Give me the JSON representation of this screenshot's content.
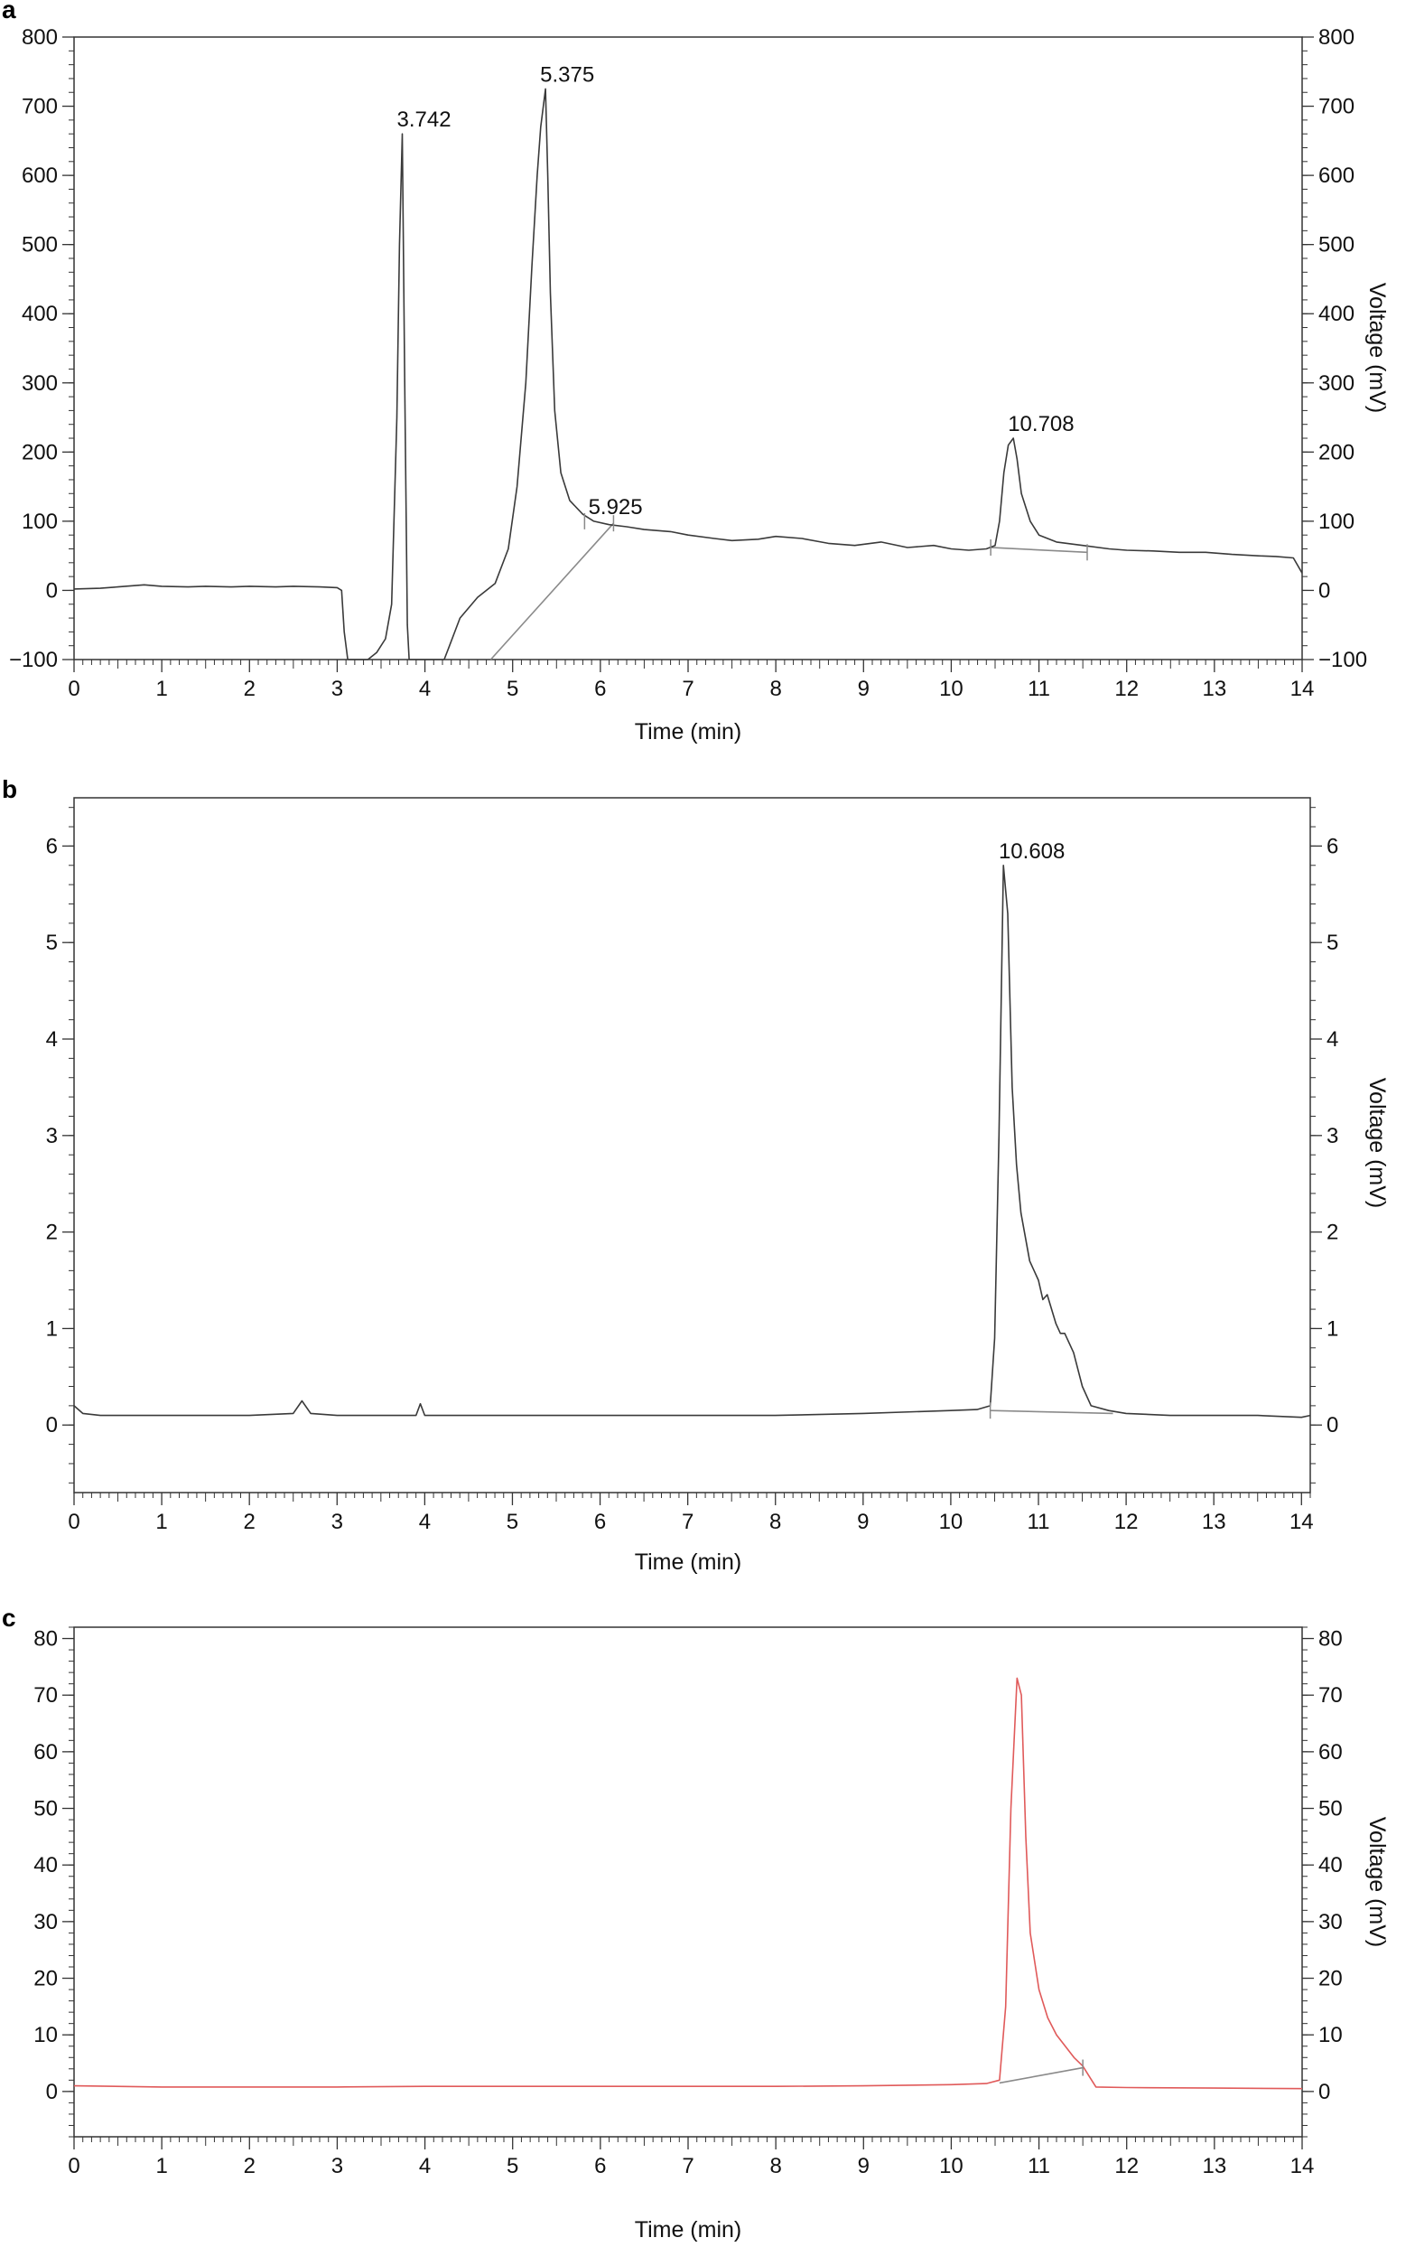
{
  "chart_data": [
    {
      "panel": "a",
      "type": "line",
      "xlabel": "Time (min)",
      "ylabel": "",
      "ylabel_right": "Voltage (mV)",
      "xlim": [
        0,
        14
      ],
      "ylim": [
        -100,
        800
      ],
      "xticks": [
        0,
        1,
        2,
        3,
        4,
        5,
        6,
        7,
        8,
        9,
        10,
        11,
        12,
        13,
        14
      ],
      "yticks": [
        -100,
        0,
        100,
        200,
        300,
        400,
        500,
        600,
        700,
        800
      ],
      "ytick_labels": [
        "−100",
        "0",
        "100",
        "200",
        "300",
        "400",
        "500",
        "600",
        "700",
        "800"
      ],
      "grid": false,
      "line_color": "#3a3a3a",
      "series": [
        {
          "x": [
            0,
            0.3,
            0.5,
            0.8,
            1.0,
            1.3,
            1.5,
            1.8,
            2.0,
            2.3,
            2.5,
            2.8,
            3.0,
            3.05,
            3.08,
            3.12,
            3.35,
            3.45,
            3.55,
            3.62,
            3.68,
            3.71,
            3.742,
            3.77,
            3.8,
            3.82,
            3.83,
            4.22,
            4.28,
            4.4,
            4.6,
            4.8,
            4.95,
            5.05,
            5.15,
            5.22,
            5.28,
            5.32,
            5.375,
            5.4,
            5.43,
            5.48,
            5.55,
            5.65,
            5.8,
            5.925,
            6.1,
            6.3,
            6.5,
            6.8,
            7.0,
            7.3,
            7.5,
            7.8,
            8.0,
            8.3,
            8.6,
            8.9,
            9.2,
            9.5,
            9.8,
            10.0,
            10.2,
            10.4,
            10.5,
            10.55,
            10.6,
            10.65,
            10.708,
            10.75,
            10.8,
            10.9,
            11.0,
            11.2,
            11.5,
            11.8,
            12.0,
            12.3,
            12.6,
            12.9,
            13.2,
            13.5,
            13.7,
            13.9,
            14.0
          ],
          "y": [
            2,
            3,
            5,
            8,
            6,
            5,
            6,
            5,
            6,
            5,
            6,
            5,
            4,
            0,
            -60,
            -100,
            -100,
            -90,
            -70,
            -20,
            250,
            500,
            660,
            300,
            -50,
            -100,
            -100,
            -100,
            -80,
            -40,
            -10,
            10,
            60,
            150,
            300,
            470,
            600,
            670,
            725,
            600,
            430,
            260,
            170,
            130,
            110,
            100,
            95,
            92,
            88,
            85,
            80,
            75,
            72,
            74,
            78,
            75,
            68,
            65,
            70,
            62,
            65,
            60,
            58,
            60,
            65,
            100,
            170,
            210,
            220,
            190,
            140,
            100,
            80,
            70,
            65,
            60,
            58,
            57,
            55,
            55,
            52,
            50,
            49,
            47,
            25
          ]
        }
      ],
      "annotations": [
        {
          "x": 3.742,
          "y": 660,
          "text": "3.742"
        },
        {
          "x": 5.375,
          "y": 725,
          "text": "5.375"
        },
        {
          "x": 5.925,
          "y": 100,
          "text": "5.925"
        },
        {
          "x": 10.708,
          "y": 220,
          "text": "10.708"
        }
      ],
      "baselines": [
        {
          "x": [
            4.75,
            6.15
          ],
          "y": [
            -100,
            97
          ]
        },
        {
          "x": [
            10.45,
            11.55
          ],
          "y": [
            62,
            55
          ]
        }
      ],
      "markers": [
        {
          "x": 5.82,
          "y": 100
        },
        {
          "x": 6.15,
          "y": 97
        },
        {
          "x": 10.45,
          "y": 62
        },
        {
          "x": 11.55,
          "y": 55
        }
      ]
    },
    {
      "panel": "b",
      "type": "line",
      "xlabel": "Time (min)",
      "ylabel": "",
      "ylabel_right": "Voltage (mV)",
      "xlim": [
        0,
        14.1
      ],
      "ylim": [
        -0.7,
        6.5
      ],
      "xticks": [
        0,
        1,
        2,
        3,
        4,
        5,
        6,
        7,
        8,
        9,
        10,
        11,
        12,
        13,
        14
      ],
      "yticks": [
        0,
        1,
        2,
        3,
        4,
        5,
        6
      ],
      "ytick_labels": [
        "0",
        "1",
        "2",
        "3",
        "4",
        "5",
        "6"
      ],
      "grid": false,
      "line_color": "#3a3a3a",
      "series": [
        {
          "x": [
            0,
            0.1,
            0.3,
            1.0,
            2.0,
            2.5,
            2.6,
            2.7,
            3.0,
            3.9,
            3.95,
            4.0,
            5.0,
            6.0,
            7.0,
            8.0,
            9.0,
            10.0,
            10.3,
            10.45,
            10.5,
            10.55,
            10.6,
            10.65,
            10.7,
            10.75,
            10.8,
            10.9,
            11.0,
            11.05,
            11.1,
            11.2,
            11.25,
            11.3,
            11.4,
            11.5,
            11.6,
            11.8,
            12.0,
            12.5,
            13.0,
            13.5,
            14.0,
            14.1
          ],
          "y": [
            0.2,
            0.12,
            0.1,
            0.1,
            0.1,
            0.12,
            0.25,
            0.12,
            0.1,
            0.1,
            0.22,
            0.1,
            0.1,
            0.1,
            0.1,
            0.1,
            0.12,
            0.15,
            0.16,
            0.2,
            0.9,
            3.0,
            5.8,
            5.3,
            3.5,
            2.7,
            2.2,
            1.7,
            1.5,
            1.3,
            1.35,
            1.05,
            0.95,
            0.95,
            0.75,
            0.4,
            0.2,
            0.15,
            0.12,
            0.1,
            0.1,
            0.1,
            0.08,
            0.1
          ]
        }
      ],
      "annotations": [
        {
          "x": 10.608,
          "y": 5.8,
          "text": "10.608"
        }
      ],
      "baselines": [
        {
          "x": [
            10.45,
            11.85
          ],
          "y": [
            0.15,
            0.12
          ]
        }
      ],
      "markers": [
        {
          "x": 10.45,
          "y": 0.15
        }
      ]
    },
    {
      "panel": "c",
      "type": "line",
      "xlabel": "Time (min)",
      "ylabel": "",
      "ylabel_right": "Voltage (mV)",
      "xlim": [
        0,
        14
      ],
      "ylim": [
        -8,
        82
      ],
      "xticks": [
        0,
        1,
        2,
        3,
        4,
        5,
        6,
        7,
        8,
        9,
        10,
        11,
        12,
        13,
        14
      ],
      "yticks": [
        0,
        10,
        20,
        30,
        40,
        50,
        60,
        70,
        80
      ],
      "ytick_labels": [
        "0",
        "10",
        "20",
        "30",
        "40",
        "50",
        "60",
        "70",
        "80"
      ],
      "grid": false,
      "line_color": "#e05a5a",
      "series": [
        {
          "x": [
            0,
            1,
            2,
            3,
            4,
            5,
            6,
            7,
            8,
            9,
            10,
            10.4,
            10.55,
            10.62,
            10.68,
            10.75,
            10.8,
            10.85,
            10.9,
            11.0,
            11.1,
            11.2,
            11.3,
            11.4,
            11.5,
            11.58,
            11.65,
            12.0,
            13.0,
            14.0
          ],
          "y": [
            1.0,
            0.8,
            0.8,
            0.8,
            0.9,
            0.9,
            0.9,
            0.9,
            0.9,
            1.0,
            1.2,
            1.4,
            2.0,
            15,
            50,
            73,
            70,
            45,
            28,
            18,
            13,
            10,
            8,
            6,
            4.5,
            2.5,
            0.8,
            0.7,
            0.6,
            0.5
          ]
        }
      ],
      "annotations": [],
      "baselines": [
        {
          "x": [
            10.55,
            11.5
          ],
          "y": [
            1.5,
            4.2
          ]
        }
      ],
      "markers": [
        {
          "x": 11.5,
          "y": 4.2
        }
      ]
    }
  ]
}
